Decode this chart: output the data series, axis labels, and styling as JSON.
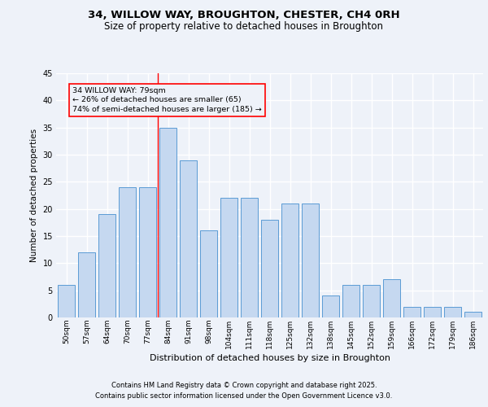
{
  "title1": "34, WILLOW WAY, BROUGHTON, CHESTER, CH4 0RH",
  "title2": "Size of property relative to detached houses in Broughton",
  "xlabel": "Distribution of detached houses by size in Broughton",
  "ylabel": "Number of detached properties",
  "categories": [
    "50sqm",
    "57sqm",
    "64sqm",
    "70sqm",
    "77sqm",
    "84sqm",
    "91sqm",
    "98sqm",
    "104sqm",
    "111sqm",
    "118sqm",
    "125sqm",
    "132sqm",
    "138sqm",
    "145sqm",
    "152sqm",
    "159sqm",
    "166sqm",
    "172sqm",
    "179sqm",
    "186sqm"
  ],
  "values": [
    6,
    12,
    19,
    24,
    24,
    35,
    29,
    16,
    22,
    22,
    18,
    21,
    21,
    4,
    6,
    6,
    7,
    2,
    2,
    2,
    1
  ],
  "bar_color": "#c5d8f0",
  "bar_edge_color": "#5b9bd5",
  "background_color": "#eef2f9",
  "grid_color": "#ffffff",
  "annotation_text": "34 WILLOW WAY: 79sqm\n← 26% of detached houses are smaller (65)\n74% of semi-detached houses are larger (185) →",
  "red_line_x": 4.5,
  "ylim": [
    0,
    45
  ],
  "yticks": [
    0,
    5,
    10,
    15,
    20,
    25,
    30,
    35,
    40,
    45
  ],
  "footer1": "Contains HM Land Registry data © Crown copyright and database right 2025.",
  "footer2": "Contains public sector information licensed under the Open Government Licence v3.0."
}
